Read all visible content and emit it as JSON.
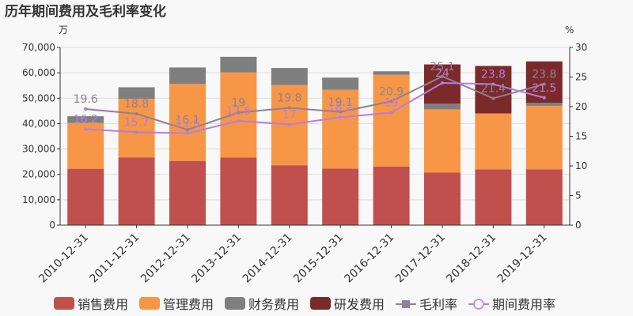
{
  "chart_data": {
    "type": "bar",
    "title": "历年期间费用及毛利率变化",
    "left_unit": "万",
    "right_unit": "%",
    "categories": [
      "2010-12-31",
      "2011-12-31",
      "2012-12-31",
      "2013-12-31",
      "2014-12-31",
      "2015-12-31",
      "2016-12-31",
      "2017-12-31",
      "2018-12-31",
      "2019-12-31"
    ],
    "ylim_left": [
      0,
      70000
    ],
    "ylim_right": [
      0,
      30
    ],
    "yticks_left": [
      "0",
      "10,000",
      "20,000",
      "30,000",
      "40,000",
      "50,000",
      "60,000",
      "70,000"
    ],
    "yticks_right": [
      "0",
      "5",
      "10",
      "15",
      "20",
      "25",
      "30"
    ],
    "series": [
      {
        "name": "销售费用",
        "kind": "bar",
        "color": "#c0504d",
        "values": [
          22200,
          26700,
          25300,
          26600,
          23600,
          22300,
          23100,
          20700,
          22000,
          22000
        ]
      },
      {
        "name": "管理费用",
        "kind": "bar",
        "color": "#f79646",
        "values": [
          18000,
          23000,
          30300,
          33600,
          31600,
          31000,
          36100,
          24900,
          22000,
          25000
        ]
      },
      {
        "name": "财务费用",
        "kind": "bar",
        "color": "#7f7f7f",
        "values": [
          2700,
          4600,
          6500,
          6100,
          6700,
          4800,
          1400,
          2200,
          0,
          1200
        ]
      },
      {
        "name": "研发费用",
        "kind": "bar",
        "color": "#7b2a2a",
        "values": [
          0,
          0,
          0,
          0,
          0,
          0,
          0,
          15500,
          18700,
          16300
        ]
      },
      {
        "name": "毛利率",
        "kind": "line",
        "color": "#8f8197",
        "values": [
          19.6,
          18.8,
          16.1,
          19,
          19.8,
          19.1,
          20.9,
          25.1,
          21.4,
          23.8
        ],
        "labels": [
          "19.6",
          "18.8",
          "16.1",
          "19",
          "19.8",
          "19.1",
          "20.9",
          "25.1",
          "21.4",
          "23.8"
        ]
      },
      {
        "name": "期间费用率",
        "kind": "line",
        "color": "#b77ce0",
        "values": [
          16.2,
          15.7,
          15.5,
          17.6,
          17,
          18.2,
          19,
          24,
          23.8,
          21.5
        ],
        "labels": [
          "16.2",
          "15.7",
          "15.5",
          "17.6",
          "17",
          "18.2",
          "19",
          "24",
          "23.8",
          "21.5"
        ]
      }
    ],
    "grid": true,
    "legend_position": "bottom"
  }
}
